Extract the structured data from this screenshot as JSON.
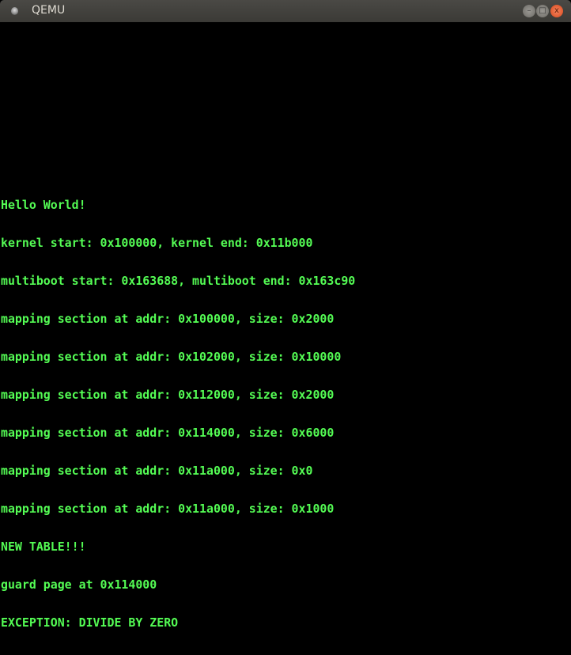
{
  "window": {
    "title": "QEMU",
    "buttons": {
      "minimize": "–",
      "maximize": "□",
      "close": "x"
    }
  },
  "console": {
    "text_color": "#54fc54",
    "lines": [
      "Hello World!",
      "kernel start: 0x100000, kernel end: 0x11b000",
      "multiboot start: 0x163688, multiboot end: 0x163c90",
      "mapping section at addr: 0x100000, size: 0x2000",
      "mapping section at addr: 0x102000, size: 0x10000",
      "mapping section at addr: 0x112000, size: 0x2000",
      "mapping section at addr: 0x114000, size: 0x6000",
      "mapping section at addr: 0x11a000, size: 0x0",
      "mapping section at addr: 0x11a000, size: 0x1000",
      "NEW TABLE!!!",
      "guard page at 0x114000",
      "EXCEPTION: DIVIDE BY ZERO"
    ]
  }
}
